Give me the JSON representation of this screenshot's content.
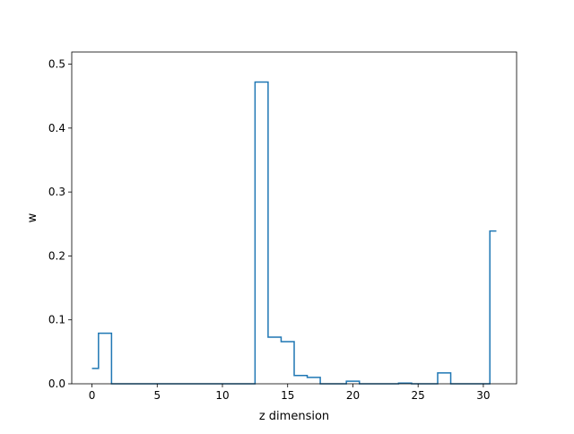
{
  "chart_data": {
    "type": "line",
    "drawstyle": "steps-mid",
    "xlabel": "z dimension",
    "ylabel": "w",
    "xlim": [
      -1.55,
      32.55
    ],
    "ylim": [
      0,
      0.519
    ],
    "xticks": [
      0,
      5,
      10,
      15,
      20,
      25,
      30
    ],
    "yticks": [
      0.0,
      0.1,
      0.2,
      0.3,
      0.4,
      0.5
    ],
    "xtick_labels": [
      "0",
      "5",
      "10",
      "15",
      "20",
      "25",
      "30"
    ],
    "ytick_labels": [
      "0.0",
      "0.1",
      "0.2",
      "0.3",
      "0.4",
      "0.5"
    ],
    "grid": false,
    "series": [
      {
        "color": "#1f77b4",
        "x": [
          0,
          1,
          2,
          3,
          4,
          5,
          6,
          7,
          8,
          9,
          10,
          11,
          12,
          13,
          14,
          15,
          16,
          17,
          18,
          19,
          20,
          21,
          22,
          23,
          24,
          25,
          26,
          27,
          28,
          29,
          30,
          31
        ],
        "y": [
          0.024,
          0.079,
          0.0,
          0.0,
          0.0,
          0.0,
          0.0,
          0.0,
          0.0,
          0.0,
          0.0,
          0.0,
          0.0,
          0.472,
          0.073,
          0.066,
          0.013,
          0.01,
          0.0,
          0.0,
          0.004,
          0.0,
          0.0,
          0.0,
          0.001,
          0.0,
          0.0,
          0.017,
          0.0,
          0.0,
          0.0,
          0.239
        ]
      }
    ]
  }
}
